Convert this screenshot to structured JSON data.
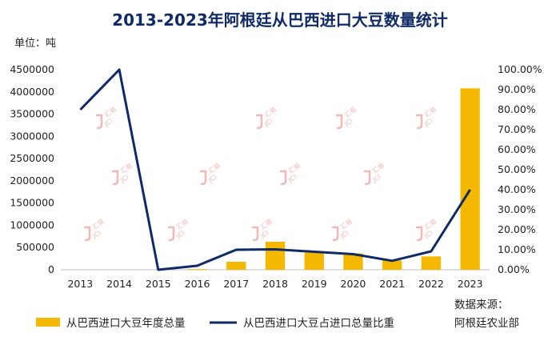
{
  "chart_data": {
    "type": "bar+line",
    "title": "2013-2023年阿根廷从巴西进口大豆数量统计",
    "unit_label": "单位：吨",
    "categories": [
      "2013",
      "2014",
      "2015",
      "2016",
      "2017",
      "2018",
      "2019",
      "2020",
      "2021",
      "2022",
      "2023"
    ],
    "y_left": {
      "min": 0,
      "max": 4500000,
      "ticks": [
        "0",
        "500000",
        "1000000",
        "1500000",
        "2000000",
        "2500000",
        "3000000",
        "3500000",
        "4000000",
        "4500000"
      ]
    },
    "y_right": {
      "min": 0,
      "max": 100,
      "ticks": [
        "0.00%",
        "10.00%",
        "20.00%",
        "30.00%",
        "40.00%",
        "50.00%",
        "60.00%",
        "70.00%",
        "80.00%",
        "90.00%",
        "100.00%"
      ]
    },
    "series": [
      {
        "name": "从巴西进口大豆年度总量",
        "type": "bar",
        "axis": "left",
        "color": "#f5b800",
        "values": [
          0,
          0,
          0,
          15000,
          180000,
          630000,
          390000,
          370000,
          210000,
          300000,
          4080000
        ]
      },
      {
        "name": "从巴西进口大豆占进口总量比重",
        "type": "line",
        "axis": "right",
        "color": "#0f2a66",
        "values": [
          80,
          100,
          0,
          2,
          10,
          10.2,
          9,
          7.8,
          4.5,
          9.2,
          40
        ]
      }
    ],
    "legend_position": "bottom",
    "grid": false
  },
  "source": {
    "line1": "数据来源：",
    "line2": "阿根廷农业部"
  },
  "watermark": {
    "text_top": "汇易",
    "text_bottom": "JCI"
  }
}
